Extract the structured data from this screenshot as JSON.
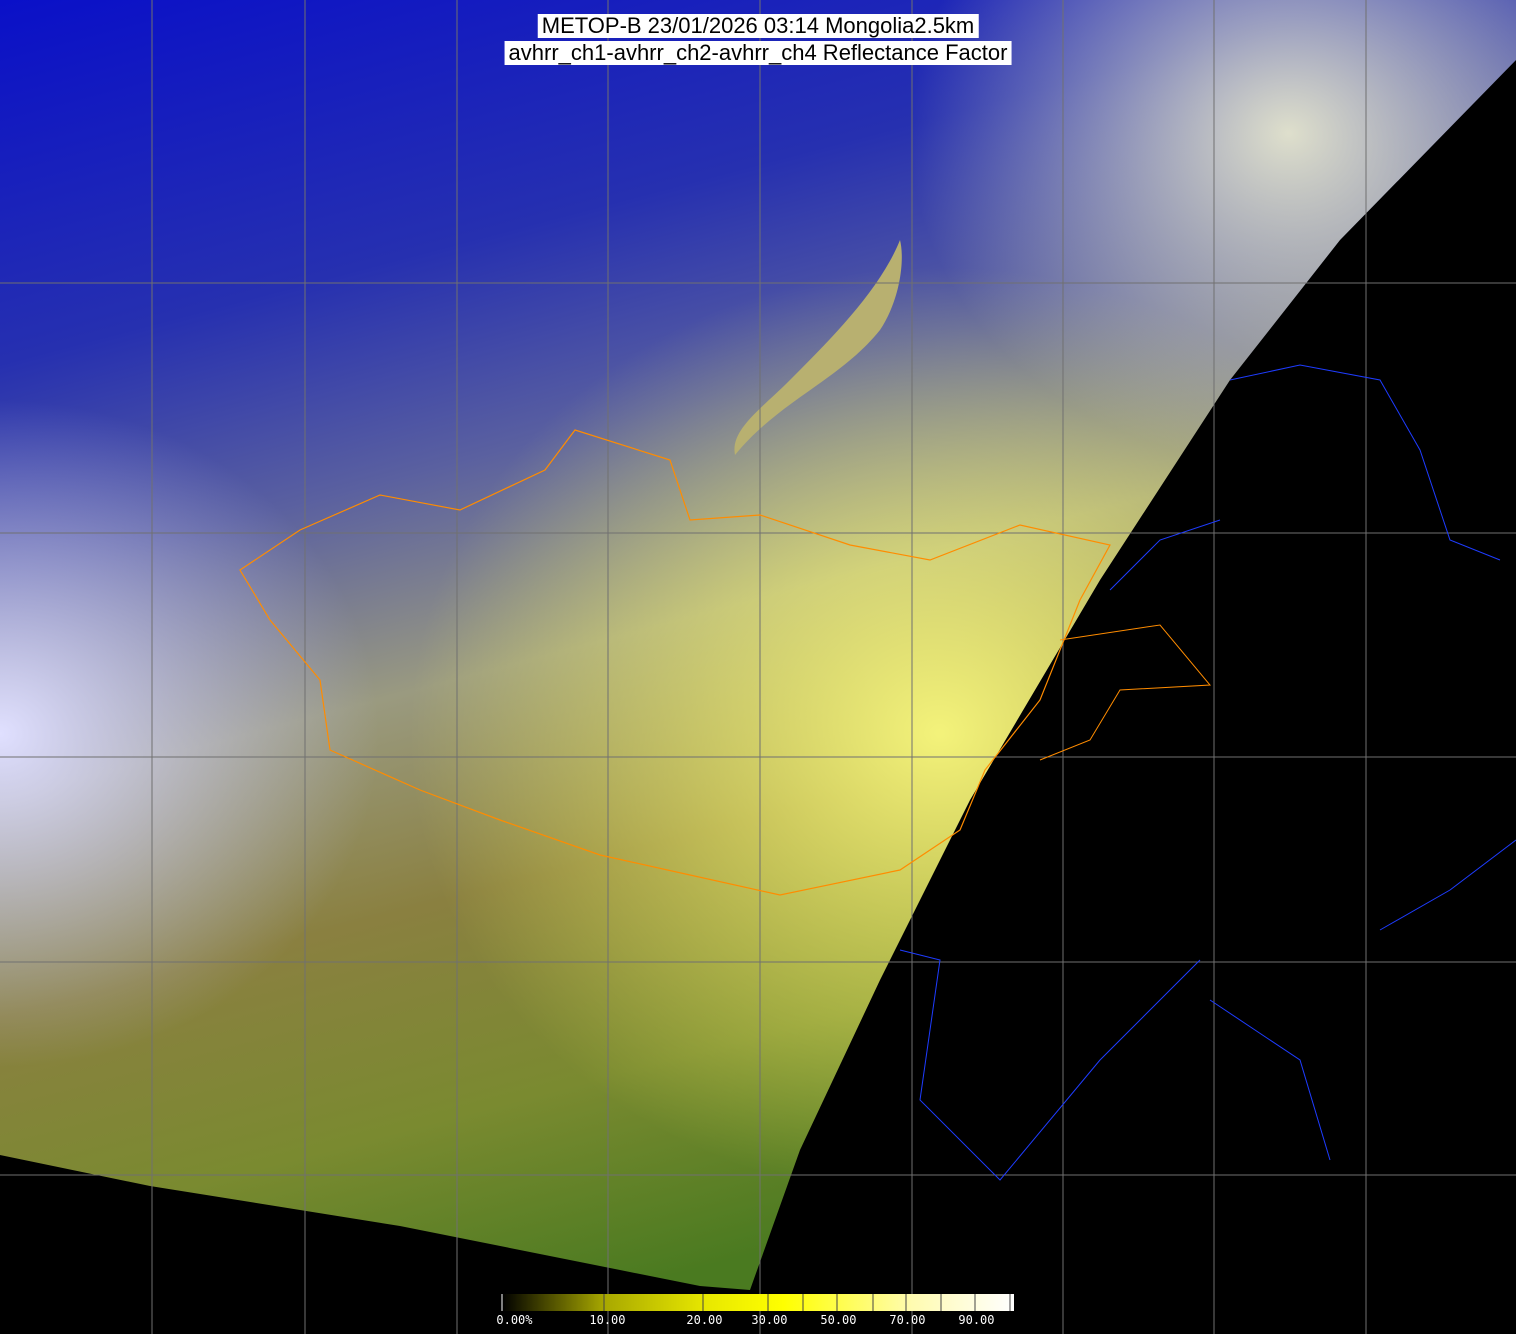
{
  "title": {
    "line1": "METOP-B 23/01/2026 03:14 Mongolia2.5km",
    "line2": "avhrr_ch1-avhrr_ch2-avhrr_ch4 Reflectance Factor"
  },
  "colorbar": {
    "labels": [
      "0.00%",
      "10.00",
      "20.00",
      "30.00",
      "50.00",
      "70.00",
      "90.00"
    ],
    "tick_values": [
      0,
      10,
      20,
      30,
      40,
      50,
      60,
      70,
      80,
      90,
      100
    ],
    "colors": {
      "low": "#000000",
      "mid": "#ffff00",
      "high": "#ffffff"
    }
  },
  "colors": {
    "north_surface": "#1a1ad0",
    "snow_cloud": "#c8c8f0",
    "south_desert": "#b0a840",
    "admin_borders": "#ff8c00",
    "coastlines": "#1e3cff",
    "grid": "#707070",
    "no_data": "#000000"
  }
}
